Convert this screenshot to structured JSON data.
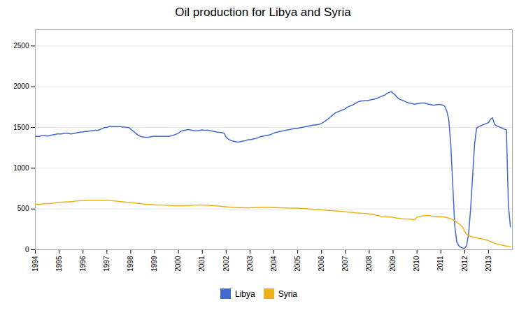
{
  "chart_data": {
    "type": "line",
    "title": "Oil production for Libya and Syria",
    "x": [
      1994,
      1994.0833333333333,
      1994.1666666666667,
      1994.25,
      1994.3333333333333,
      1994.4166666666667,
      1994.5,
      1994.5833333333333,
      1994.6666666666667,
      1994.75,
      1994.8333333333333,
      1994.9166666666667,
      1995,
      1995.0833333333333,
      1995.1666666666667,
      1995.25,
      1995.3333333333333,
      1995.4166666666667,
      1995.5,
      1995.5833333333333,
      1995.6666666666667,
      1995.75,
      1995.8333333333333,
      1995.9166666666667,
      1996,
      1996.0833333333333,
      1996.1666666666667,
      1996.25,
      1996.3333333333333,
      1996.4166666666667,
      1996.5,
      1996.5833333333333,
      1996.6666666666667,
      1996.75,
      1996.8333333333333,
      1996.9166666666667,
      1997,
      1997.0833333333333,
      1997.1666666666667,
      1997.25,
      1997.3333333333333,
      1997.4166666666667,
      1997.5,
      1997.5833333333333,
      1997.6666666666667,
      1997.75,
      1997.8333333333333,
      1997.9166666666667,
      1998,
      1998.0833333333333,
      1998.1666666666667,
      1998.25,
      1998.3333333333333,
      1998.4166666666667,
      1998.5,
      1998.5833333333333,
      1998.6666666666667,
      1998.75,
      1998.8333333333333,
      1998.9166666666667,
      1999,
      1999.0833333333333,
      1999.1666666666667,
      1999.25,
      1999.3333333333333,
      1999.4166666666667,
      1999.5,
      1999.5833333333333,
      1999.6666666666667,
      1999.75,
      1999.8333333333333,
      1999.9166666666667,
      2000,
      2000.0833333333333,
      2000.1666666666667,
      2000.25,
      2000.3333333333333,
      2000.4166666666667,
      2000.5,
      2000.5833333333333,
      2000.6666666666667,
      2000.75,
      2000.8333333333333,
      2000.9166666666667,
      2001,
      2001.0833333333333,
      2001.1666666666667,
      2001.25,
      2001.3333333333333,
      2001.4166666666667,
      2001.5,
      2001.5833333333333,
      2001.6666666666667,
      2001.75,
      2001.8333333333333,
      2001.9166666666667,
      2002,
      2002.0833333333333,
      2002.1666666666667,
      2002.25,
      2002.3333333333333,
      2002.4166666666667,
      2002.5,
      2002.5833333333333,
      2002.6666666666667,
      2002.75,
      2002.8333333333333,
      2002.9166666666667,
      2003,
      2003.0833333333333,
      2003.1666666666667,
      2003.25,
      2003.3333333333333,
      2003.4166666666667,
      2003.5,
      2003.5833333333333,
      2003.6666666666667,
      2003.75,
      2003.8333333333333,
      2003.9166666666667,
      2004,
      2004.0833333333333,
      2004.1666666666667,
      2004.25,
      2004.3333333333333,
      2004.4166666666667,
      2004.5,
      2004.5833333333333,
      2004.6666666666667,
      2004.75,
      2004.8333333333333,
      2004.9166666666667,
      2005,
      2005.0833333333333,
      2005.1666666666667,
      2005.25,
      2005.3333333333333,
      2005.4166666666667,
      2005.5,
      2005.5833333333333,
      2005.6666666666667,
      2005.75,
      2005.8333333333333,
      2005.9166666666667,
      2006,
      2006.0833333333333,
      2006.1666666666667,
      2006.25,
      2006.3333333333333,
      2006.4166666666667,
      2006.5,
      2006.5833333333333,
      2006.6666666666667,
      2006.75,
      2006.8333333333333,
      2006.9166666666667,
      2007,
      2007.0833333333333,
      2007.1666666666667,
      2007.25,
      2007.3333333333333,
      2007.4166666666667,
      2007.5,
      2007.5833333333333,
      2007.6666666666667,
      2007.75,
      2007.8333333333333,
      2007.9166666666667,
      2008,
      2008.0833333333333,
      2008.1666666666667,
      2008.25,
      2008.3333333333333,
      2008.4166666666667,
      2008.5,
      2008.5833333333333,
      2008.6666666666667,
      2008.75,
      2008.8333333333333,
      2008.9166666666667,
      2009,
      2009.0833333333333,
      2009.1666666666667,
      2009.25,
      2009.3333333333333,
      2009.4166666666667,
      2009.5,
      2009.5833333333333,
      2009.6666666666667,
      2009.75,
      2009.8333333333333,
      2009.9166666666667,
      2010,
      2010.0833333333333,
      2010.1666666666667,
      2010.25,
      2010.3333333333333,
      2010.4166666666667,
      2010.5,
      2010.5833333333333,
      2010.6666666666667,
      2010.75,
      2010.8333333333333,
      2010.9166666666667,
      2011,
      2011.0833333333333,
      2011.1666666666667,
      2011.25,
      2011.3333333333333,
      2011.4166666666667,
      2011.5,
      2011.5833333333333,
      2011.6666666666667,
      2011.75,
      2011.8333333333333,
      2011.9166666666667,
      2012,
      2012.0833333333333,
      2012.1666666666667,
      2012.25,
      2012.3333333333333,
      2012.4166666666667,
      2012.5,
      2012.5833333333333,
      2012.6666666666667,
      2012.75,
      2012.8333333333333,
      2012.9166666666667,
      2013,
      2013.0833333333333,
      2013.1666666666667,
      2013.25,
      2013.3333333333333,
      2013.4166666666667,
      2013.5,
      2013.5833333333333,
      2013.6666666666667,
      2013.75,
      2013.8333333333333,
      2013.9166666666667
    ],
    "series": [
      {
        "name": "Libya",
        "values": [
          1390,
          1390,
          1390,
          1400,
          1400,
          1400,
          1395,
          1400,
          1405,
          1410,
          1415,
          1420,
          1420,
          1420,
          1425,
          1430,
          1430,
          1425,
          1420,
          1425,
          1430,
          1435,
          1440,
          1445,
          1445,
          1450,
          1450,
          1455,
          1460,
          1460,
          1465,
          1465,
          1470,
          1480,
          1490,
          1500,
          1500,
          1510,
          1510,
          1510,
          1510,
          1510,
          1510,
          1510,
          1505,
          1505,
          1500,
          1500,
          1480,
          1460,
          1440,
          1420,
          1400,
          1390,
          1385,
          1380,
          1380,
          1380,
          1385,
          1390,
          1390,
          1390,
          1390,
          1390,
          1390,
          1390,
          1390,
          1390,
          1395,
          1400,
          1410,
          1420,
          1430,
          1450,
          1460,
          1465,
          1470,
          1475,
          1470,
          1465,
          1460,
          1460,
          1460,
          1465,
          1470,
          1465,
          1465,
          1465,
          1460,
          1455,
          1450,
          1445,
          1440,
          1440,
          1435,
          1430,
          1380,
          1360,
          1345,
          1335,
          1330,
          1325,
          1320,
          1325,
          1330,
          1335,
          1340,
          1350,
          1350,
          1355,
          1360,
          1365,
          1375,
          1385,
          1390,
          1395,
          1400,
          1405,
          1410,
          1420,
          1430,
          1440,
          1445,
          1450,
          1455,
          1460,
          1465,
          1470,
          1475,
          1480,
          1485,
          1490,
          1490,
          1495,
          1500,
          1505,
          1510,
          1515,
          1520,
          1525,
          1530,
          1530,
          1535,
          1540,
          1550,
          1565,
          1580,
          1600,
          1620,
          1640,
          1660,
          1680,
          1690,
          1700,
          1710,
          1720,
          1730,
          1750,
          1760,
          1770,
          1780,
          1795,
          1810,
          1820,
          1825,
          1825,
          1830,
          1830,
          1835,
          1840,
          1845,
          1850,
          1860,
          1870,
          1880,
          1890,
          1900,
          1920,
          1930,
          1940,
          1920,
          1900,
          1870,
          1850,
          1840,
          1830,
          1820,
          1810,
          1800,
          1795,
          1790,
          1785,
          1790,
          1795,
          1800,
          1800,
          1800,
          1790,
          1785,
          1780,
          1775,
          1775,
          1780,
          1780,
          1780,
          1775,
          1760,
          1700,
          1600,
          1300,
          800,
          300,
          100,
          50,
          30,
          20,
          20,
          50,
          200,
          500,
          900,
          1300,
          1490,
          1510,
          1520,
          1530,
          1540,
          1550,
          1560,
          1600,
          1620,
          1540,
          1520,
          1510,
          1500,
          1490,
          1480,
          1470,
          550,
          280
        ]
      },
      {
        "name": "Syria",
        "values": [
          560,
          558,
          558,
          560,
          562,
          563,
          565,
          565,
          568,
          570,
          575,
          580,
          582,
          583,
          585,
          586,
          587,
          588,
          590,
          592,
          595,
          598,
          600,
          602,
          603,
          604,
          605,
          606,
          606,
          606,
          607,
          607,
          607,
          607,
          606,
          605,
          604,
          603,
          602,
          600,
          598,
          595,
          592,
          590,
          588,
          585,
          582,
          580,
          578,
          575,
          572,
          570,
          568,
          565,
          562,
          560,
          558,
          556,
          554,
          552,
          550,
          548,
          548,
          548,
          547,
          546,
          545,
          544,
          543,
          542,
          541,
          540,
          540,
          540,
          540,
          541,
          542,
          543,
          544,
          545,
          546,
          547,
          548,
          549,
          548,
          547,
          546,
          545,
          543,
          541,
          539,
          537,
          535,
          533,
          531,
          530,
          528,
          525,
          523,
          521,
          519,
          518,
          517,
          516,
          516,
          515,
          515,
          515,
          515,
          516,
          517,
          518,
          519,
          520,
          521,
          521,
          521,
          521,
          520,
          519,
          518,
          517,
          516,
          515,
          514,
          513,
          512,
          511,
          510,
          510,
          510,
          510,
          509,
          508,
          506,
          505,
          503,
          501,
          499,
          497,
          495,
          493,
          491,
          490,
          489,
          487,
          485,
          483,
          481,
          479,
          477,
          475,
          473,
          471,
          469,
          467,
          465,
          462,
          460,
          458,
          456,
          453,
          451,
          449,
          447,
          446,
          445,
          444,
          440,
          435,
          430,
          425,
          420,
          415,
          410,
          407,
          405,
          403,
          401,
          400,
          398,
          393,
          388,
          385,
          382,
          380,
          378,
          376,
          374,
          372,
          370,
          368,
          400,
          405,
          410,
          415,
          418,
          420,
          420,
          415,
          412,
          410,
          408,
          406,
          405,
          403,
          400,
          395,
          388,
          380,
          370,
          355,
          340,
          320,
          300,
          280,
          220,
          190,
          175,
          165,
          158,
          150,
          145,
          140,
          135,
          130,
          125,
          120,
          110,
          100,
          90,
          80,
          72,
          65,
          60,
          55,
          50,
          45,
          42,
          40
        ]
      }
    ],
    "xlim": [
      1994,
      2014
    ],
    "xticks": [
      1994,
      1995,
      1996,
      1997,
      1998,
      1999,
      2000,
      2001,
      2002,
      2003,
      2004,
      2005,
      2006,
      2007,
      2008,
      2009,
      2010,
      2011,
      2012,
      2013
    ],
    "ylim": [
      0,
      2700
    ],
    "yticks": [
      0,
      500,
      1000,
      1500,
      2000,
      2500
    ],
    "grid": true,
    "legend": "bottom"
  }
}
